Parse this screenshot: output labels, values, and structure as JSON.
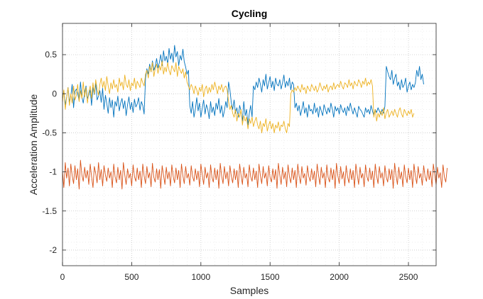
{
  "chart_data": {
    "type": "line",
    "title": "Cycling",
    "xlabel": "Samples",
    "ylabel": "Acceleration Amplitude",
    "xlim": [
      0,
      2700
    ],
    "ylim": [
      -2.2,
      0.9
    ],
    "xticks": [
      0,
      500,
      1000,
      1500,
      2000,
      2500
    ],
    "xtick_labels": [
      "0",
      "500",
      "1000",
      "1500",
      "2000",
      "2500"
    ],
    "yticks": [
      0.5,
      0,
      -0.5,
      -1,
      -1.5,
      -2
    ],
    "ytick_labels": [
      "0.5",
      "0",
      "-0.5",
      "-1",
      "-1.5",
      "-2"
    ],
    "grid": "major and minor, dotted",
    "x_step": 10,
    "series": [
      {
        "color": "#0072BD",
        "values": [
          -0.05,
          0.04,
          -0.14,
          -0.05,
          0.08,
          -0.1,
          -0.03,
          0.12,
          -0.18,
          0.03,
          0.06,
          0.0,
          -0.09,
          0.15,
          -0.04,
          -0.12,
          0.02,
          0.1,
          -0.06,
          -0.02,
          0.05,
          -0.15,
          0.08,
          -0.01,
          0.13,
          -0.08,
          -0.03,
          0.04,
          -0.11,
          0.07,
          -0.2,
          -0.02,
          -0.12,
          -0.25,
          -0.05,
          -0.18,
          -0.08,
          -0.3,
          -0.1,
          -0.16,
          -0.03,
          -0.22,
          -0.12,
          -0.06,
          -0.19,
          -0.09,
          -0.28,
          -0.14,
          -0.04,
          -0.2,
          -0.11,
          -0.24,
          -0.07,
          -0.17,
          -0.13,
          -0.05,
          -0.21,
          -0.1,
          -0.15,
          -0.26,
          0.2,
          0.32,
          0.25,
          0.38,
          0.28,
          0.42,
          0.3,
          0.35,
          0.45,
          0.33,
          0.4,
          0.5,
          0.36,
          0.55,
          0.42,
          0.48,
          0.38,
          0.58,
          0.44,
          0.52,
          0.4,
          0.62,
          0.47,
          0.54,
          0.36,
          0.49,
          0.43,
          0.57,
          0.41,
          0.34,
          0.25,
          0.3,
          -0.15,
          -0.25,
          -0.1,
          -0.3,
          -0.2,
          -0.05,
          -0.22,
          -0.12,
          -0.3,
          -0.18,
          -0.08,
          -0.26,
          -0.14,
          -0.2,
          -0.32,
          -0.1,
          -0.24,
          -0.17,
          -0.28,
          -0.12,
          -0.2,
          -0.06,
          -0.25,
          -0.15,
          -0.3,
          -0.22,
          -0.1,
          -0.18,
          0.15,
          0.05,
          -0.12,
          -0.2,
          -0.08,
          -0.25,
          -0.18,
          -0.3,
          -0.15,
          -0.22,
          -0.35,
          -0.1,
          -0.28,
          -0.2,
          -0.4,
          -0.25,
          -0.15,
          -0.3,
          0.1,
          0.05,
          0.15,
          0.08,
          0.2,
          0.12,
          0.02,
          0.18,
          0.1,
          0.25,
          0.06,
          0.14,
          0.22,
          0.08,
          0.16,
          0.04,
          0.2,
          0.12,
          0.1,
          0.18,
          0.06,
          0.14,
          0.24,
          0.08,
          0.16,
          0.1,
          0.2,
          0.05,
          0.15,
          0.12,
          -0.18,
          -0.12,
          -0.22,
          -0.15,
          -0.28,
          -0.2,
          -0.1,
          -0.25,
          -0.18,
          -0.3,
          -0.14,
          -0.22,
          -0.2,
          -0.26,
          -0.12,
          -0.24,
          -0.18,
          -0.3,
          -0.16,
          -0.22,
          -0.28,
          -0.14,
          -0.2,
          -0.26,
          -0.18,
          -0.24,
          -0.12,
          -0.2,
          -0.3,
          -0.16,
          -0.22,
          -0.18,
          -0.26,
          -0.14,
          -0.2,
          -0.24,
          -0.18,
          -0.28,
          -0.16,
          -0.22,
          -0.12,
          -0.2,
          -0.26,
          -0.18,
          -0.24,
          -0.3,
          -0.16,
          -0.2,
          -0.22,
          -0.26,
          -0.3,
          -0.18,
          -0.24,
          -0.2,
          -0.26,
          -0.15,
          -0.22,
          -0.28,
          -0.2,
          -0.24,
          -0.18,
          -0.22,
          -0.26,
          -0.2,
          -0.25,
          -0.16,
          0.35,
          0.28,
          0.22,
          0.18,
          0.3,
          0.12,
          0.2,
          0.25,
          0.1,
          0.15,
          0.05,
          0.18,
          0.08,
          0.12,
          0.2,
          0.02,
          0.1,
          0.15,
          0.05,
          0.12,
          0.08,
          0.14,
          0.3,
          0.22,
          0.35,
          0.18,
          0.25,
          0.12
        ]
      },
      {
        "color": "#D95319",
        "values": [
          -1.0,
          -1.2,
          -0.88,
          -1.08,
          -0.95,
          -1.18,
          -0.9,
          -1.05,
          -1.15,
          -0.92,
          -1.1,
          -0.96,
          -1.22,
          -0.85,
          -1.04,
          -1.12,
          -0.94,
          -1.08,
          -0.98,
          -1.16,
          -0.9,
          -1.06,
          -1.2,
          -0.93,
          -1.02,
          -1.14,
          -0.88,
          -1.1,
          -0.97,
          -1.18,
          -0.92,
          -1.04,
          -1.12,
          -0.95,
          -1.08,
          -1.0,
          -1.2,
          -0.9,
          -1.06,
          -1.14,
          -0.94,
          -1.1,
          -0.98,
          -1.22,
          -0.88,
          -1.04,
          -1.16,
          -0.96,
          -1.08,
          -1.02,
          -1.18,
          -0.91,
          -1.06,
          -1.12,
          -0.95,
          -1.1,
          -0.99,
          -1.2,
          -0.9,
          -1.05,
          -1.15,
          -0.93,
          -1.08,
          -1.01,
          -1.19,
          -0.89,
          -1.07,
          -1.13,
          -0.96,
          -1.1,
          -0.97,
          -1.21,
          -0.92,
          -1.04,
          -1.16,
          -0.94,
          -1.09,
          -1.0,
          -1.18,
          -0.91,
          -1.06,
          -1.14,
          -0.95,
          -1.1,
          -0.98,
          -1.2,
          -0.9,
          -1.05,
          -1.15,
          -0.93,
          -1.08,
          -1.02,
          -1.17,
          -0.92,
          -1.06,
          -1.12,
          -0.96,
          -1.1,
          -0.99,
          -1.19,
          -0.9,
          -1.04,
          -1.16,
          -0.94,
          -1.08,
          -1.01,
          -1.2,
          -0.91,
          -1.07,
          -1.13,
          -0.95,
          -1.1,
          -0.97,
          -1.21,
          -0.89,
          -1.05,
          -1.15,
          -0.93,
          -1.09,
          -1.0,
          -1.18,
          -0.92,
          -1.06,
          -1.14,
          -0.96,
          -1.1,
          -0.98,
          -1.2,
          -0.9,
          -1.04,
          -1.16,
          -0.94,
          -1.08,
          -1.02,
          -1.19,
          -0.91,
          -1.06,
          -1.12,
          -0.95,
          -1.1,
          -0.99,
          -1.2,
          -0.9,
          -1.05,
          -1.15,
          -0.93,
          -1.08,
          -1.01,
          -1.18,
          -0.92,
          -1.07,
          -1.13,
          -0.96,
          -1.1,
          -0.97,
          -1.21,
          -0.89,
          -1.04,
          -1.16,
          -0.94,
          -1.09,
          -1.0,
          -1.19,
          -0.91,
          -1.06,
          -1.14,
          -0.95,
          -1.1,
          -0.98,
          -1.2,
          -0.9,
          -1.05,
          -1.15,
          -0.93,
          -1.08,
          -1.02,
          -1.17,
          -0.92,
          -1.06,
          -1.12,
          -0.96,
          -1.1,
          -0.99,
          -1.19,
          -0.9,
          -1.04,
          -1.16,
          -0.94,
          -1.08,
          -1.01,
          -1.2,
          -0.91,
          -1.07,
          -1.13,
          -0.95,
          -1.1,
          -0.97,
          -1.21,
          -0.89,
          -1.05,
          -1.15,
          -0.93,
          -1.09,
          -1.0,
          -1.18,
          -0.92,
          -1.06,
          -1.14,
          -0.96,
          -1.1,
          -0.98,
          -1.2,
          -0.9,
          -1.04,
          -1.16,
          -0.94,
          -1.08,
          -1.02,
          -1.19,
          -0.91,
          -1.06,
          -1.12,
          -0.95,
          -1.1,
          -0.99,
          -1.2,
          -0.9,
          -1.05,
          -1.15,
          -0.93,
          -1.08,
          -1.01,
          -1.18,
          -0.92,
          -1.07,
          -1.13,
          -0.96,
          -1.1,
          -0.97,
          -1.21,
          -0.89,
          -1.04,
          -1.16,
          -0.94,
          -1.09,
          -1.0,
          -1.19,
          -0.91,
          -1.06,
          -1.14,
          -0.95,
          -1.1,
          -0.98,
          -1.2,
          -0.9,
          -1.05,
          -1.15,
          -0.93,
          -1.08,
          -1.02,
          -1.17,
          -0.92,
          -1.06,
          -1.12,
          -0.96,
          -1.1,
          -0.99,
          -1.19,
          -0.9,
          -1.04,
          -1.16,
          -0.94,
          -1.08,
          -1.01,
          -1.2,
          -0.91,
          -1.07,
          -1.13,
          -0.95
        ]
      },
      {
        "color": "#EDB120",
        "values": [
          -0.1,
          0.05,
          -0.2,
          -0.05,
          0.08,
          -0.15,
          0.0,
          -0.12,
          0.1,
          -0.08,
          -0.02,
          0.12,
          -0.1,
          0.04,
          -0.06,
          0.15,
          -0.04,
          0.08,
          -0.12,
          0.02,
          0.1,
          -0.06,
          0.14,
          0.0,
          0.18,
          0.06,
          -0.02,
          0.12,
          0.2,
          0.08,
          0.16,
          0.04,
          0.22,
          0.1,
          0.0,
          0.14,
          0.06,
          0.18,
          0.08,
          0.12,
          0.02,
          0.2,
          0.1,
          0.15,
          0.05,
          0.24,
          0.12,
          0.08,
          0.18,
          0.04,
          0.14,
          0.1,
          0.2,
          0.06,
          0.16,
          0.12,
          0.08,
          0.2,
          0.14,
          0.1,
          0.25,
          0.3,
          0.2,
          0.35,
          0.28,
          0.4,
          0.22,
          0.32,
          0.38,
          0.26,
          0.36,
          0.3,
          0.42,
          0.25,
          0.34,
          0.28,
          0.4,
          0.3,
          0.24,
          0.36,
          0.32,
          0.28,
          0.4,
          0.22,
          0.35,
          0.3,
          0.26,
          0.32,
          0.2,
          0.28,
          0.15,
          0.1,
          0.05,
          0.12,
          0.08,
          0.0,
          0.1,
          0.05,
          -0.02,
          0.08,
          0.03,
          0.12,
          -0.04,
          0.06,
          0.1,
          0.0,
          0.08,
          0.02,
          0.12,
          0.05,
          0.15,
          0.08,
          0.0,
          0.1,
          0.05,
          0.12,
          0.02,
          0.08,
          0.1,
          0.05,
          -0.1,
          -0.2,
          -0.15,
          -0.25,
          -0.3,
          -0.2,
          -0.35,
          -0.25,
          -0.3,
          -0.2,
          -0.4,
          -0.28,
          -0.35,
          -0.3,
          -0.45,
          -0.32,
          -0.38,
          -0.3,
          -0.42,
          -0.35,
          -0.3,
          -0.4,
          -0.45,
          -0.35,
          -0.5,
          -0.38,
          -0.42,
          -0.32,
          -0.48,
          -0.4,
          -0.35,
          -0.45,
          -0.38,
          -0.5,
          -0.4,
          -0.44,
          -0.36,
          -0.48,
          -0.4,
          -0.42,
          -0.35,
          -0.45,
          -0.5,
          -0.38,
          -0.42,
          0.0,
          0.05,
          0.02,
          0.08,
          0.04,
          0.1,
          0.06,
          0.02,
          0.12,
          0.05,
          0.08,
          0.0,
          0.1,
          0.06,
          0.03,
          0.12,
          0.08,
          0.04,
          0.1,
          0.02,
          0.06,
          0.14,
          0.08,
          0.04,
          0.1,
          0.06,
          0.12,
          0.02,
          0.08,
          0.1,
          0.05,
          0.14,
          0.06,
          0.1,
          0.12,
          0.08,
          0.16,
          0.1,
          0.06,
          0.14,
          0.12,
          0.08,
          0.18,
          0.1,
          0.14,
          0.06,
          0.16,
          0.12,
          0.1,
          0.18,
          0.14,
          0.08,
          0.16,
          0.12,
          0.2,
          0.1,
          0.15,
          0.12,
          0.18,
          0.1,
          -0.3,
          -0.2,
          -0.35,
          -0.25,
          -0.3,
          -0.22,
          -0.28,
          -0.18,
          -0.32,
          -0.24,
          -0.2,
          -0.3,
          -0.26,
          -0.22,
          -0.28,
          -0.2,
          -0.25,
          -0.3,
          -0.22,
          -0.18,
          -0.26,
          -0.3,
          -0.2,
          -0.24,
          -0.28,
          -0.22,
          -0.26,
          -0.2,
          -0.3,
          -0.25
        ]
      }
    ]
  }
}
